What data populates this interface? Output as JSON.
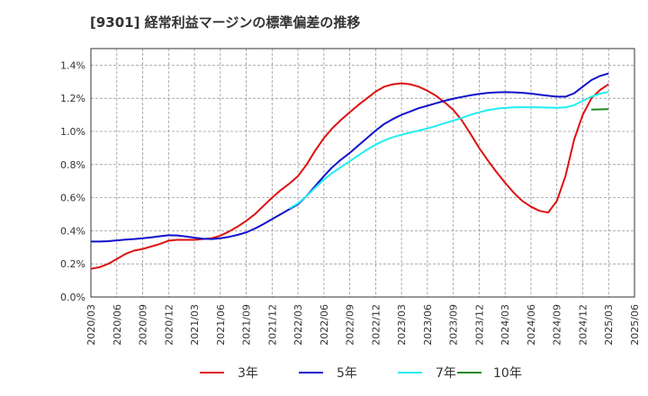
{
  "chart_data": {
    "type": "line",
    "title": "[9301]  経常利益マージンの標準偏差の推移",
    "xlabel": "",
    "ylabel": "",
    "x_start": "2020-03",
    "x_end": "2025-06",
    "x_tick_labels": [
      "2020/03",
      "2020/06",
      "2020/09",
      "2020/12",
      "2021/03",
      "2021/06",
      "2021/09",
      "2021/12",
      "2022/03",
      "2022/06",
      "2022/09",
      "2022/12",
      "2023/03",
      "2023/06",
      "2023/09",
      "2023/12",
      "2024/03",
      "2024/06",
      "2024/09",
      "2024/12",
      "2025/03",
      "2025/06"
    ],
    "y_tick_labels": [
      "0.0%",
      "0.2%",
      "0.4%",
      "0.6%",
      "0.8%",
      "1.0%",
      "1.2%",
      "1.4%"
    ],
    "ylim": [
      0,
      1.5
    ],
    "grid": true,
    "legend_position": "bottom",
    "series": [
      {
        "name": "3年",
        "color": "#dd1111",
        "x": [
          "2020-03",
          "2020-04",
          "2020-05",
          "2020-06",
          "2020-07",
          "2020-08",
          "2020-09",
          "2020-10",
          "2020-11",
          "2020-12",
          "2021-01",
          "2021-02",
          "2021-03",
          "2021-04",
          "2021-05",
          "2021-06",
          "2021-07",
          "2021-08",
          "2021-09",
          "2021-10",
          "2021-11",
          "2021-12",
          "2022-01",
          "2022-02",
          "2022-03",
          "2022-04",
          "2022-05",
          "2022-06",
          "2022-07",
          "2022-08",
          "2022-09",
          "2022-10",
          "2022-11",
          "2022-12",
          "2023-01",
          "2023-02",
          "2023-03",
          "2023-04",
          "2023-05",
          "2023-06",
          "2023-07",
          "2023-08",
          "2023-09",
          "2023-10",
          "2023-11",
          "2023-12",
          "2024-01",
          "2024-02",
          "2024-03",
          "2024-04",
          "2024-05",
          "2024-06",
          "2024-07",
          "2024-08",
          "2024-09",
          "2024-10",
          "2024-11",
          "2024-12",
          "2025-01",
          "2025-02",
          "2025-03"
        ],
        "values": [
          0.17,
          0.18,
          0.2,
          0.23,
          0.26,
          0.28,
          0.29,
          0.305,
          0.32,
          0.34,
          0.345,
          0.345,
          0.345,
          0.35,
          0.355,
          0.37,
          0.395,
          0.425,
          0.46,
          0.5,
          0.55,
          0.6,
          0.645,
          0.685,
          0.73,
          0.8,
          0.885,
          0.96,
          1.02,
          1.07,
          1.115,
          1.16,
          1.2,
          1.24,
          1.27,
          1.285,
          1.29,
          1.285,
          1.27,
          1.245,
          1.215,
          1.175,
          1.13,
          1.065,
          0.985,
          0.9,
          0.825,
          0.755,
          0.69,
          0.63,
          0.58,
          0.545,
          0.52,
          0.51,
          0.58,
          0.73,
          0.95,
          1.1,
          1.2,
          1.25,
          1.285
        ]
      },
      {
        "name": "5年",
        "color": "#1111cc",
        "x": [
          "2020-03",
          "2020-04",
          "2020-05",
          "2020-06",
          "2020-07",
          "2020-08",
          "2020-09",
          "2020-10",
          "2020-11",
          "2020-12",
          "2021-01",
          "2021-02",
          "2021-03",
          "2021-04",
          "2021-05",
          "2021-06",
          "2021-07",
          "2021-08",
          "2021-09",
          "2021-10",
          "2021-11",
          "2021-12",
          "2022-01",
          "2022-02",
          "2022-03",
          "2022-04",
          "2022-05",
          "2022-06",
          "2022-07",
          "2022-08",
          "2022-09",
          "2022-10",
          "2022-11",
          "2022-12",
          "2023-01",
          "2023-02",
          "2023-03",
          "2023-04",
          "2023-05",
          "2023-06",
          "2023-07",
          "2023-08",
          "2023-09",
          "2023-10",
          "2023-11",
          "2023-12",
          "2024-01",
          "2024-02",
          "2024-03",
          "2024-04",
          "2024-05",
          "2024-06",
          "2024-07",
          "2024-08",
          "2024-09",
          "2024-10",
          "2024-11",
          "2024-12",
          "2025-01",
          "2025-02",
          "2025-03"
        ],
        "values": [
          0.335,
          0.335,
          0.337,
          0.342,
          0.347,
          0.35,
          0.355,
          0.36,
          0.367,
          0.373,
          0.372,
          0.366,
          0.358,
          0.352,
          0.35,
          0.355,
          0.363,
          0.375,
          0.39,
          0.413,
          0.44,
          0.47,
          0.5,
          0.53,
          0.56,
          0.61,
          0.67,
          0.73,
          0.785,
          0.83,
          0.87,
          0.915,
          0.96,
          1.005,
          1.045,
          1.075,
          1.1,
          1.12,
          1.14,
          1.155,
          1.17,
          1.185,
          1.198,
          1.208,
          1.218,
          1.226,
          1.232,
          1.236,
          1.237,
          1.236,
          1.233,
          1.228,
          1.222,
          1.215,
          1.21,
          1.21,
          1.23,
          1.27,
          1.31,
          1.335,
          1.35
        ]
      },
      {
        "name": "7年",
        "color": "#22eeee",
        "x": [
          "2022-02",
          "2022-03",
          "2022-04",
          "2022-05",
          "2022-06",
          "2022-07",
          "2022-08",
          "2022-09",
          "2022-10",
          "2022-11",
          "2022-12",
          "2023-01",
          "2023-02",
          "2023-03",
          "2023-04",
          "2023-05",
          "2023-06",
          "2023-07",
          "2023-08",
          "2023-09",
          "2023-10",
          "2023-11",
          "2023-12",
          "2024-01",
          "2024-02",
          "2024-03",
          "2024-04",
          "2024-05",
          "2024-06",
          "2024-07",
          "2024-08",
          "2024-09",
          "2024-10",
          "2024-11",
          "2024-12",
          "2025-01",
          "2025-02",
          "2025-03"
        ],
        "values": [
          0.535,
          0.565,
          0.61,
          0.66,
          0.71,
          0.75,
          0.785,
          0.82,
          0.855,
          0.89,
          0.92,
          0.945,
          0.965,
          0.98,
          0.993,
          1.005,
          1.018,
          1.033,
          1.05,
          1.065,
          1.082,
          1.1,
          1.115,
          1.128,
          1.137,
          1.142,
          1.145,
          1.146,
          1.146,
          1.145,
          1.144,
          1.143,
          1.145,
          1.158,
          1.185,
          1.21,
          1.228,
          1.238
        ]
      },
      {
        "name": "10年",
        "color": "#228822",
        "x": [
          "2025-01",
          "2025-03"
        ],
        "values": [
          1.132,
          1.135
        ]
      }
    ]
  }
}
